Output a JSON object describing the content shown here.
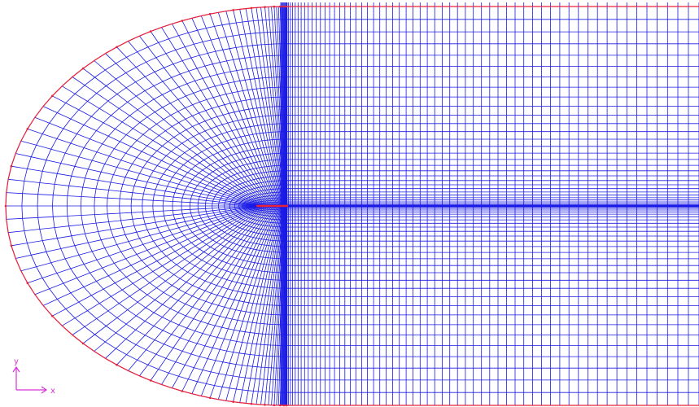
{
  "axis_triad": {
    "y_label": "y",
    "x_label": "x"
  }
}
